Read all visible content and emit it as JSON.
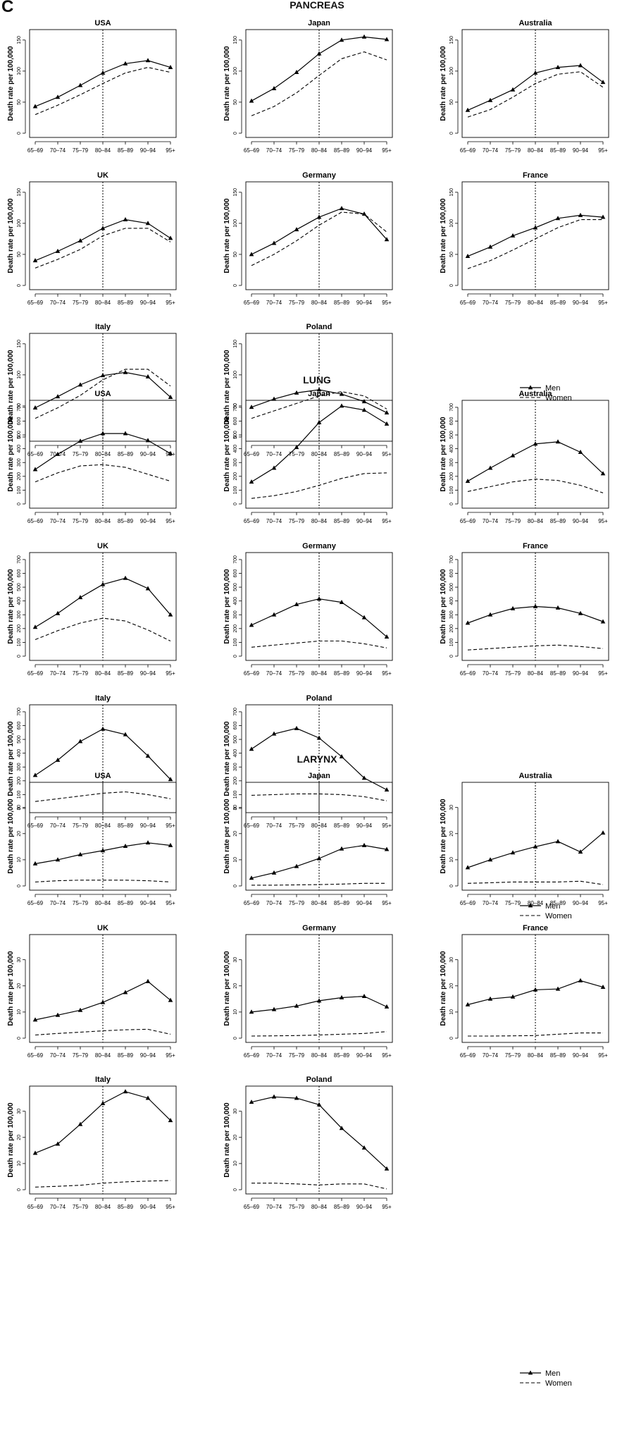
{
  "figure": {
    "panel_letter": "C"
  },
  "sections": [
    {
      "title": "PANCREAS",
      "y_ticks": [
        0,
        50,
        100,
        150
      ],
      "ylim": [
        0,
        160
      ]
    },
    {
      "title": "LUNG",
      "y_ticks": [
        0,
        100,
        200,
        300,
        400,
        500,
        600,
        700
      ],
      "ylim": [
        0,
        720
      ]
    },
    {
      "title": "LARYNX",
      "y_ticks": [
        0,
        10,
        20,
        30
      ],
      "ylim": [
        0,
        38
      ]
    }
  ],
  "legend": {
    "men": "Men",
    "women": "Women"
  },
  "chart_data": [
    {
      "type": "line",
      "section": "PANCREAS",
      "title": "USA",
      "ylabel": "Death rate per 100,000",
      "ylim": [
        0,
        160
      ],
      "x": [
        "65–69",
        "70–74",
        "75–79",
        "80–84",
        "85–89",
        "90–94",
        "95+"
      ],
      "reference_line_at": "80–84",
      "series": [
        {
          "name": "Men",
          "values": [
            43,
            58,
            77,
            97,
            112,
            117,
            106
          ]
        },
        {
          "name": "Women",
          "values": [
            30,
            45,
            62,
            80,
            97,
            106,
            98
          ]
        }
      ]
    },
    {
      "type": "line",
      "section": "PANCREAS",
      "title": "Japan",
      "ylabel": "Death rate per 100,000",
      "ylim": [
        0,
        160
      ],
      "x": [
        "65–69",
        "70–74",
        "75–79",
        "80–84",
        "85–89",
        "90–94",
        "95+"
      ],
      "reference_line_at": "80–84",
      "series": [
        {
          "name": "Men",
          "values": [
            52,
            72,
            98,
            128,
            150,
            155,
            151
          ]
        },
        {
          "name": "Women",
          "values": [
            28,
            43,
            65,
            93,
            120,
            131,
            118
          ]
        }
      ]
    },
    {
      "type": "line",
      "section": "PANCREAS",
      "title": "Australia",
      "ylabel": "Death rate per 100,000",
      "ylim": [
        0,
        160
      ],
      "x": [
        "65–69",
        "70–74",
        "75–79",
        "80–84",
        "85–89",
        "90–94",
        "95+"
      ],
      "reference_line_at": "80–84",
      "series": [
        {
          "name": "Men",
          "values": [
            37,
            53,
            70,
            97,
            106,
            109,
            82
          ]
        },
        {
          "name": "Women",
          "values": [
            26,
            38,
            58,
            80,
            95,
            99,
            74
          ]
        }
      ]
    },
    {
      "type": "line",
      "section": "PANCREAS",
      "title": "UK",
      "ylabel": "Death rate per 100,000",
      "ylim": [
        0,
        160
      ],
      "x": [
        "65–69",
        "70–74",
        "75–79",
        "80–84",
        "85–89",
        "90–94",
        "95+"
      ],
      "reference_line_at": "80–84",
      "series": [
        {
          "name": "Men",
          "values": [
            40,
            55,
            72,
            92,
            106,
            100,
            76
          ]
        },
        {
          "name": "Women",
          "values": [
            28,
            42,
            58,
            80,
            92,
            92,
            70
          ]
        }
      ]
    },
    {
      "type": "line",
      "section": "PANCREAS",
      "title": "Germany",
      "ylabel": "Death rate per 100,000",
      "ylim": [
        0,
        160
      ],
      "x": [
        "65–69",
        "70–74",
        "75–79",
        "80–84",
        "85–89",
        "90–94",
        "95+"
      ],
      "reference_line_at": "80–84",
      "series": [
        {
          "name": "Men",
          "values": [
            50,
            68,
            90,
            110,
            124,
            115,
            74
          ]
        },
        {
          "name": "Women",
          "values": [
            32,
            50,
            72,
            97,
            118,
            115,
            86
          ]
        }
      ]
    },
    {
      "type": "line",
      "section": "PANCREAS",
      "title": "France",
      "ylabel": "Death rate per 100,000",
      "ylim": [
        0,
        160
      ],
      "x": [
        "65–69",
        "70–74",
        "75–79",
        "80–84",
        "85–89",
        "90–94",
        "95+"
      ],
      "reference_line_at": "80–84",
      "series": [
        {
          "name": "Men",
          "values": [
            47,
            62,
            80,
            93,
            108,
            113,
            110
          ]
        },
        {
          "name": "Women",
          "values": [
            27,
            40,
            57,
            75,
            93,
            106,
            106
          ]
        }
      ]
    },
    {
      "type": "line",
      "section": "PANCREAS",
      "title": "Italy",
      "ylabel": "Death rate per 100,000",
      "ylim": [
        0,
        160
      ],
      "x": [
        "65–69",
        "70–74",
        "75–79",
        "80–84",
        "85–89",
        "90–94",
        "95+"
      ],
      "reference_line_at": "80–84",
      "series": [
        {
          "name": "Men",
          "values": [
            47,
            65,
            84,
            99,
            104,
            97,
            64
          ]
        },
        {
          "name": "Women",
          "values": [
            30,
            47,
            67,
            92,
            109,
            109,
            82
          ]
        }
      ]
    },
    {
      "type": "line",
      "section": "PANCREAS",
      "title": "Poland",
      "ylabel": "Death rate per 100,000",
      "ylim": [
        0,
        160
      ],
      "x": [
        "65–69",
        "70–74",
        "75–79",
        "80–84",
        "85–89",
        "90–94",
        "95+"
      ],
      "reference_line_at": "80–84",
      "series": [
        {
          "name": "Men",
          "values": [
            48,
            61,
            71,
            76,
            69,
            57,
            39
          ]
        },
        {
          "name": "Women",
          "values": [
            30,
            42,
            54,
            66,
            73,
            66,
            45
          ]
        }
      ]
    },
    {
      "type": "line",
      "section": "LUNG",
      "title": "USA",
      "ylabel": "Death rate per 100,000",
      "ylim": [
        0,
        720
      ],
      "x": [
        "65–69",
        "70–74",
        "75–79",
        "80–84",
        "85–89",
        "90–94",
        "95+"
      ],
      "reference_line_at": "80–84",
      "series": [
        {
          "name": "Men",
          "values": [
            250,
            360,
            455,
            510,
            510,
            460,
            365
          ]
        },
        {
          "name": "Women",
          "values": [
            160,
            225,
            275,
            285,
            265,
            215,
            165
          ]
        }
      ]
    },
    {
      "type": "line",
      "section": "LUNG",
      "title": "Japan",
      "ylabel": "Death rate per 100,000",
      "ylim": [
        0,
        720
      ],
      "x": [
        "65–69",
        "70–74",
        "75–79",
        "80–84",
        "85–89",
        "90–94",
        "95+"
      ],
      "reference_line_at": "80–84",
      "series": [
        {
          "name": "Men",
          "values": [
            160,
            260,
            410,
            590,
            710,
            680,
            580
          ]
        },
        {
          "name": "Women",
          "values": [
            40,
            60,
            90,
            135,
            185,
            220,
            225
          ]
        }
      ]
    },
    {
      "type": "line",
      "section": "LUNG",
      "title": "Australia",
      "ylabel": "Death rate per 100,000",
      "ylim": [
        0,
        720
      ],
      "x": [
        "65–69",
        "70–74",
        "75–79",
        "80–84",
        "85–89",
        "90–94",
        "95+"
      ],
      "reference_line_at": "80–84",
      "series": [
        {
          "name": "Men",
          "values": [
            165,
            260,
            350,
            435,
            450,
            375,
            220
          ]
        },
        {
          "name": "Women",
          "values": [
            90,
            125,
            160,
            180,
            170,
            135,
            80
          ]
        }
      ]
    },
    {
      "type": "line",
      "section": "LUNG",
      "title": "UK",
      "ylabel": "Death rate per 100,000",
      "ylim": [
        0,
        720
      ],
      "x": [
        "65–69",
        "70–74",
        "75–79",
        "80–84",
        "85–89",
        "90–94",
        "95+"
      ],
      "reference_line_at": "80–84",
      "series": [
        {
          "name": "Men",
          "values": [
            210,
            310,
            425,
            520,
            565,
            490,
            300
          ]
        },
        {
          "name": "Women",
          "values": [
            120,
            185,
            240,
            275,
            255,
            190,
            110
          ]
        }
      ]
    },
    {
      "type": "line",
      "section": "LUNG",
      "title": "Germany",
      "ylabel": "Death rate per 100,000",
      "ylim": [
        0,
        720
      ],
      "x": [
        "65–69",
        "70–74",
        "75–79",
        "80–84",
        "85–89",
        "90–94",
        "95+"
      ],
      "reference_line_at": "80–84",
      "series": [
        {
          "name": "Men",
          "values": [
            225,
            300,
            375,
            415,
            390,
            280,
            140
          ]
        },
        {
          "name": "Women",
          "values": [
            65,
            80,
            95,
            110,
            110,
            90,
            60
          ]
        }
      ]
    },
    {
      "type": "line",
      "section": "LUNG",
      "title": "France",
      "ylabel": "Death rate per 100,000",
      "ylim": [
        0,
        720
      ],
      "x": [
        "65–69",
        "70–74",
        "75–79",
        "80–84",
        "85–89",
        "90–94",
        "95+"
      ],
      "reference_line_at": "80–84",
      "series": [
        {
          "name": "Men",
          "values": [
            240,
            300,
            345,
            360,
            350,
            310,
            250
          ]
        },
        {
          "name": "Women",
          "values": [
            45,
            55,
            65,
            75,
            80,
            70,
            55
          ]
        }
      ]
    },
    {
      "type": "line",
      "section": "LUNG",
      "title": "Italy",
      "ylabel": "Death rate per 100,000",
      "ylim": [
        0,
        720
      ],
      "x": [
        "65–69",
        "70–74",
        "75–79",
        "80–84",
        "85–89",
        "90–94",
        "95+"
      ],
      "reference_line_at": "80–84",
      "series": [
        {
          "name": "Men",
          "values": [
            240,
            350,
            485,
            575,
            535,
            380,
            210
          ]
        },
        {
          "name": "Women",
          "values": [
            50,
            70,
            90,
            110,
            120,
            100,
            70
          ]
        }
      ]
    },
    {
      "type": "line",
      "section": "LUNG",
      "title": "Poland",
      "ylabel": "Death rate per 100,000",
      "ylim": [
        0,
        720
      ],
      "x": [
        "65–69",
        "70–74",
        "75–79",
        "80–84",
        "85–89",
        "90–94",
        "95+"
      ],
      "reference_line_at": "80–84",
      "series": [
        {
          "name": "Men",
          "values": [
            430,
            540,
            580,
            510,
            375,
            220,
            135
          ]
        },
        {
          "name": "Women",
          "values": [
            95,
            100,
            105,
            105,
            100,
            85,
            55
          ]
        }
      ]
    },
    {
      "type": "line",
      "section": "LARYNX",
      "title": "USA",
      "ylabel": "Death rate per 100,000",
      "ylim": [
        0,
        38
      ],
      "x": [
        "65–69",
        "70–74",
        "75–79",
        "80–84",
        "85–89",
        "90–94",
        "95+"
      ],
      "reference_line_at": "80–84",
      "series": [
        {
          "name": "Men",
          "values": [
            8.5,
            10,
            12,
            13.5,
            15.2,
            16.5,
            15.5
          ]
        },
        {
          "name": "Women",
          "values": [
            1.5,
            2,
            2.2,
            2.2,
            2.2,
            2,
            1.5
          ]
        }
      ]
    },
    {
      "type": "line",
      "section": "LARYNX",
      "title": "Japan",
      "ylabel": "Death rate per 100,000",
      "ylim": [
        0,
        38
      ],
      "x": [
        "65–69",
        "70–74",
        "75–79",
        "80–84",
        "85–89",
        "90–94",
        "95+"
      ],
      "reference_line_at": "80–84",
      "series": [
        {
          "name": "Men",
          "values": [
            3,
            5,
            7.5,
            10.5,
            14.2,
            15.5,
            14
          ]
        },
        {
          "name": "Women",
          "values": [
            0.3,
            0.3,
            0.4,
            0.5,
            0.7,
            1,
            1
          ]
        }
      ]
    },
    {
      "type": "line",
      "section": "LARYNX",
      "title": "Australia",
      "ylabel": "Death rate per 100,000",
      "ylim": [
        0,
        38
      ],
      "x": [
        "65–69",
        "70–74",
        "75–79",
        "80–84",
        "85–89",
        "90–94",
        "95+"
      ],
      "reference_line_at": "80–84",
      "series": [
        {
          "name": "Men",
          "values": [
            7,
            10,
            12.7,
            15,
            17,
            13,
            20.3
          ]
        },
        {
          "name": "Women",
          "values": [
            1,
            1.2,
            1.5,
            1.5,
            1.5,
            1.8,
            0.5
          ]
        }
      ]
    },
    {
      "type": "line",
      "section": "LARYNX",
      "title": "UK",
      "ylabel": "Death rate per 100,000",
      "ylim": [
        0,
        38
      ],
      "x": [
        "65–69",
        "70–74",
        "75–79",
        "80–84",
        "85–89",
        "90–94",
        "95+"
      ],
      "reference_line_at": "80–84",
      "series": [
        {
          "name": "Men",
          "values": [
            7,
            8.8,
            10.7,
            13.7,
            17.5,
            21.7,
            14.5
          ]
        },
        {
          "name": "Women",
          "values": [
            1.2,
            1.8,
            2.3,
            2.8,
            3.2,
            3.4,
            1.5
          ]
        }
      ]
    },
    {
      "type": "line",
      "section": "LARYNX",
      "title": "Germany",
      "ylabel": "Death rate per 100,000",
      "ylim": [
        0,
        38
      ],
      "x": [
        "65–69",
        "70–74",
        "75–79",
        "80–84",
        "85–89",
        "90–94",
        "95+"
      ],
      "reference_line_at": "80–84",
      "series": [
        {
          "name": "Men",
          "values": [
            10,
            11,
            12.3,
            14.3,
            15.5,
            16,
            12
          ]
        },
        {
          "name": "Women",
          "values": [
            0.8,
            0.9,
            1,
            1.2,
            1.5,
            1.8,
            2.5
          ]
        }
      ]
    },
    {
      "type": "line",
      "section": "LARYNX",
      "title": "France",
      "ylabel": "Death rate per 100,000",
      "ylim": [
        0,
        38
      ],
      "x": [
        "65–69",
        "70–74",
        "75–79",
        "80–84",
        "85–89",
        "90–94",
        "95+"
      ],
      "reference_line_at": "80–84",
      "series": [
        {
          "name": "Men",
          "values": [
            12.8,
            15,
            15.8,
            18.5,
            18.8,
            22,
            19.5
          ]
        },
        {
          "name": "Women",
          "values": [
            0.8,
            0.8,
            0.9,
            1,
            1.5,
            2,
            2
          ]
        }
      ]
    },
    {
      "type": "line",
      "section": "LARYNX",
      "title": "Italy",
      "ylabel": "Death rate per 100,000",
      "ylim": [
        0,
        38
      ],
      "x": [
        "65–69",
        "70–74",
        "75–79",
        "80–84",
        "85–89",
        "90–94",
        "95+"
      ],
      "reference_line_at": "80–84",
      "series": [
        {
          "name": "Men",
          "values": [
            14,
            17.5,
            25,
            33,
            37.5,
            35,
            26.5
          ]
        },
        {
          "name": "Women",
          "values": [
            1,
            1.3,
            1.7,
            2.5,
            3,
            3.3,
            3.5
          ]
        }
      ]
    },
    {
      "type": "line",
      "section": "LARYNX",
      "title": "Poland",
      "ylabel": "Death rate per 100,000",
      "ylim": [
        0,
        38
      ],
      "x": [
        "65–69",
        "70–74",
        "75–79",
        "80–84",
        "85–89",
        "90–94",
        "95+"
      ],
      "reference_line_at": "80–84",
      "series": [
        {
          "name": "Men",
          "values": [
            33.5,
            35.5,
            35,
            32.5,
            23.5,
            16,
            8
          ]
        },
        {
          "name": "Women",
          "values": [
            2.5,
            2.5,
            2.2,
            1.8,
            2.2,
            2.2,
            0.3
          ]
        }
      ]
    }
  ]
}
